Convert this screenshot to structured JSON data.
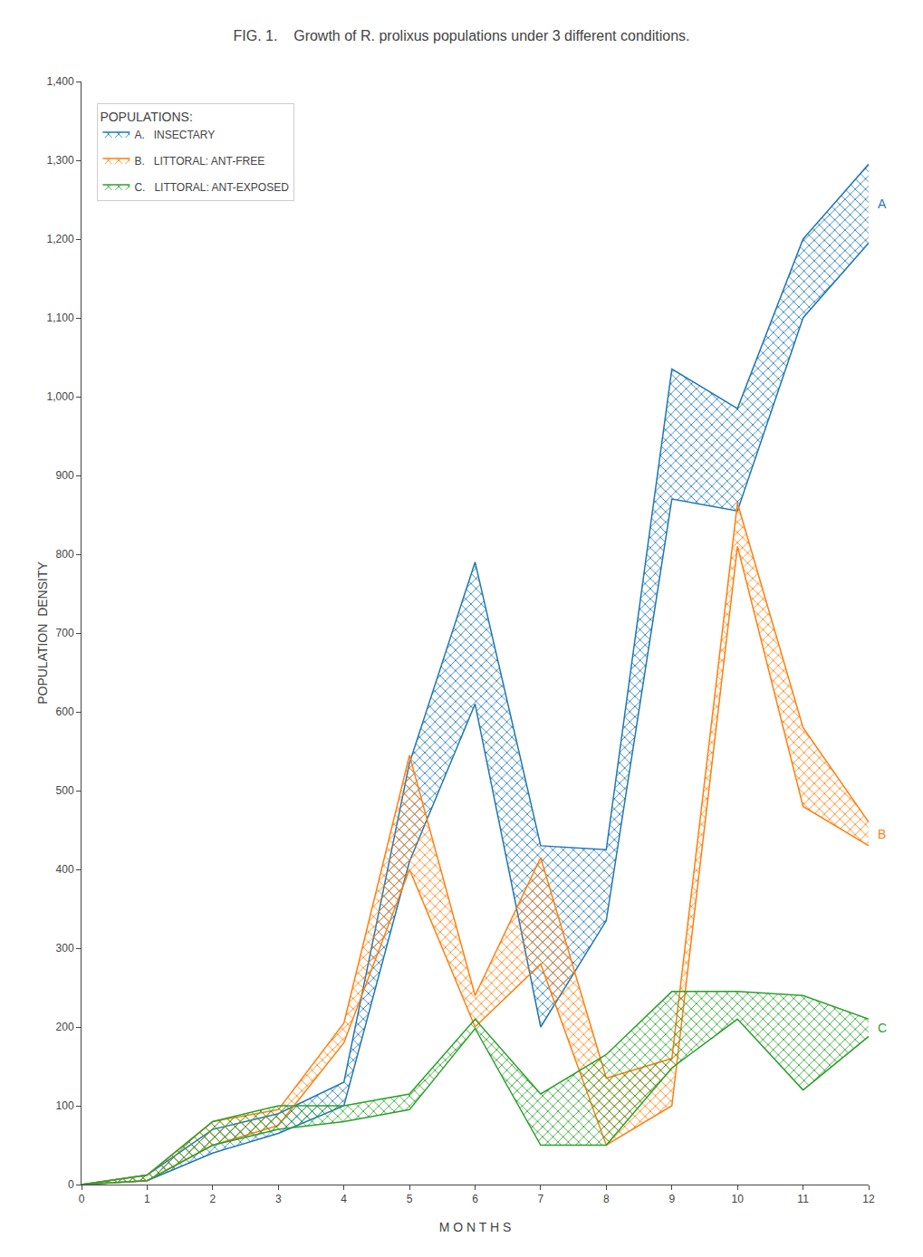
{
  "chart_data": {
    "type": "band",
    "title": "FIG. 1.    Growth of R. prolixus populations under 3 different conditions.",
    "xlabel": "M O N T H S",
    "ylabel": "POPULATION  DENSITY",
    "x": [
      0,
      1,
      2,
      3,
      4,
      5,
      6,
      7,
      8,
      9,
      10,
      11,
      12
    ],
    "series": [
      {
        "name": "A.   INSECTARY",
        "label": "A",
        "color": "#1f77b4",
        "values": [
          0,
          12,
          70,
          90,
          130,
          535,
          790,
          430,
          425,
          1035,
          985,
          1200,
          1295
        ],
        "lower": [
          0,
          5,
          40,
          65,
          100,
          410,
          610,
          200,
          335,
          870,
          855,
          1100,
          1195
        ]
      },
      {
        "name": "B.   LITTORAL: ANT-FREE",
        "label": "B",
        "color": "#ff7f0e",
        "values": [
          0,
          12,
          80,
          95,
          205,
          545,
          240,
          415,
          135,
          160,
          865,
          580,
          460
        ],
        "lower": [
          0,
          5,
          50,
          75,
          180,
          400,
          200,
          280,
          50,
          100,
          810,
          480,
          430
        ]
      },
      {
        "name": "C.   LITTORAL: ANT-EXPOSED",
        "label": "C",
        "color": "#2ca02c",
        "values": [
          0,
          12,
          80,
          100,
          100,
          115,
          210,
          115,
          165,
          245,
          245,
          240,
          210
        ],
        "lower": [
          0,
          5,
          50,
          70,
          80,
          95,
          198,
          50,
          50,
          148,
          210,
          120,
          188
        ]
      }
    ],
    "legend_title": "POPULATIONS:",
    "legend": "upper left",
    "xlim": [
      0,
      12
    ],
    "xticks": [
      0,
      1,
      2,
      3,
      4,
      5,
      6,
      7,
      8,
      9,
      10,
      11,
      12
    ],
    "ylim": [
      0,
      1400
    ],
    "yticks": [
      0,
      100,
      200,
      300,
      400,
      500,
      600,
      700,
      800,
      900,
      {
        "value": 1000,
        "label": "1,000"
      },
      {
        "value": 1100,
        "label": "1,100"
      },
      {
        "value": 1200,
        "label": "1,200"
      },
      {
        "value": 1300,
        "label": "1,300"
      },
      {
        "value": 1400,
        "label": "1,400"
      }
    ],
    "grid": false
  }
}
